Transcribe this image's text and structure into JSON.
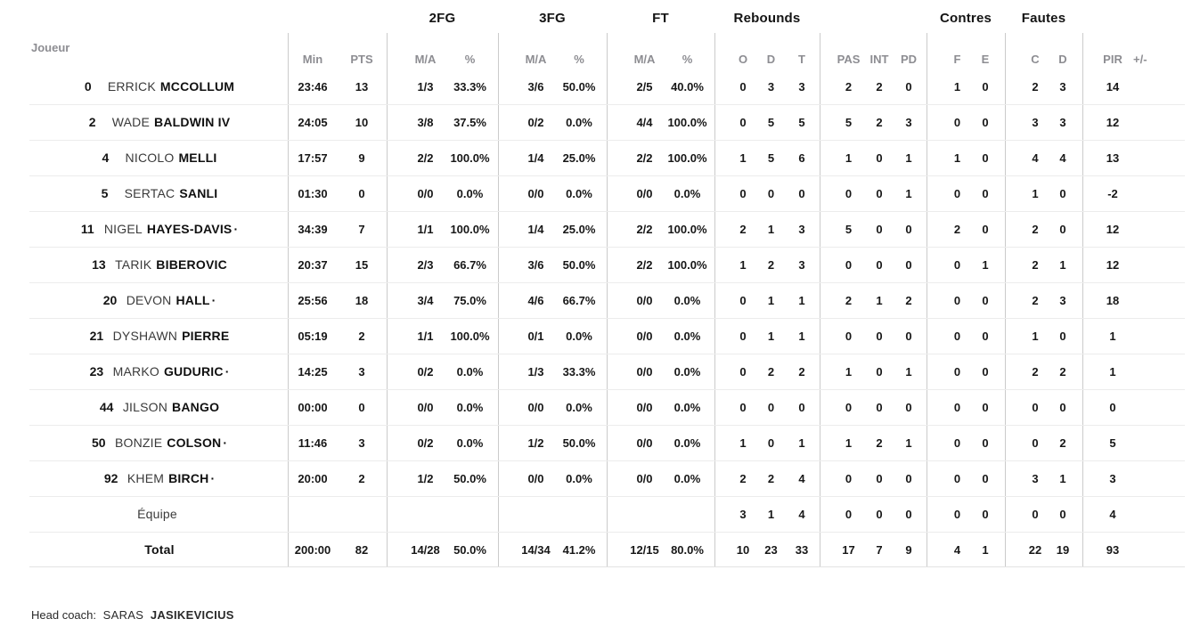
{
  "colors": {
    "text": "#171717",
    "muted": "#8d8d92",
    "vline": "#cbcbcb",
    "hline": "#ececec"
  },
  "table": {
    "joueur_header": "Joueur",
    "group_headers": {
      "fg2": "2FG",
      "fg3": "3FG",
      "ft": "FT",
      "rebounds": "Rebounds",
      "contres": "Contres",
      "fautes": "Fautes"
    },
    "col_headers": {
      "min": "Min",
      "pts": "PTS",
      "ma": "M/A",
      "pct": "%",
      "o": "O",
      "d": "D",
      "t": "T",
      "pas": "PAS",
      "int": "INT",
      "pd": "PD",
      "f": "F",
      "e": "E",
      "c": "C",
      "d2": "D",
      "pir": "PIR",
      "plusminus": "+/-"
    },
    "rows": [
      {
        "number": "0",
        "name_regular": "ERRICK",
        "name_bold": "MCCOLLUM",
        "marker": "",
        "min": "23:46",
        "pts": "13",
        "fg2_ma": "1/3",
        "fg2_pct": "33.3%",
        "fg3_ma": "3/6",
        "fg3_pct": "50.0%",
        "ft_ma": "2/5",
        "ft_pct": "40.0%",
        "reb_o": "0",
        "reb_d": "3",
        "reb_t": "3",
        "pas": "2",
        "int": "2",
        "pd": "0",
        "f": "1",
        "e": "0",
        "c": "2",
        "d": "3",
        "pir": "14",
        "pm": ""
      },
      {
        "number": "2",
        "name_regular": "WADE",
        "name_bold": "BALDWIN IV",
        "marker": "",
        "min": "24:05",
        "pts": "10",
        "fg2_ma": "3/8",
        "fg2_pct": "37.5%",
        "fg3_ma": "0/2",
        "fg3_pct": "0.0%",
        "ft_ma": "4/4",
        "ft_pct": "100.0%",
        "reb_o": "0",
        "reb_d": "5",
        "reb_t": "5",
        "pas": "5",
        "int": "2",
        "pd": "3",
        "f": "0",
        "e": "0",
        "c": "3",
        "d": "3",
        "pir": "12",
        "pm": ""
      },
      {
        "number": "4",
        "name_regular": "NICOLO",
        "name_bold": "MELLI",
        "marker": "",
        "min": "17:57",
        "pts": "9",
        "fg2_ma": "2/2",
        "fg2_pct": "100.0%",
        "fg3_ma": "1/4",
        "fg3_pct": "25.0%",
        "ft_ma": "2/2",
        "ft_pct": "100.0%",
        "reb_o": "1",
        "reb_d": "5",
        "reb_t": "6",
        "pas": "1",
        "int": "0",
        "pd": "1",
        "f": "1",
        "e": "0",
        "c": "4",
        "d": "4",
        "pir": "13",
        "pm": ""
      },
      {
        "number": "5",
        "name_regular": "SERTAC",
        "name_bold": "SANLI",
        "marker": "",
        "min": "01:30",
        "pts": "0",
        "fg2_ma": "0/0",
        "fg2_pct": "0.0%",
        "fg3_ma": "0/0",
        "fg3_pct": "0.0%",
        "ft_ma": "0/0",
        "ft_pct": "0.0%",
        "reb_o": "0",
        "reb_d": "0",
        "reb_t": "0",
        "pas": "0",
        "int": "0",
        "pd": "1",
        "f": "0",
        "e": "0",
        "c": "1",
        "d": "0",
        "pir": "-2",
        "pm": ""
      },
      {
        "number": "11",
        "name_regular": "NIGEL",
        "name_bold": "HAYES-DAVIS",
        "marker": "·",
        "min": "34:39",
        "pts": "7",
        "fg2_ma": "1/1",
        "fg2_pct": "100.0%",
        "fg3_ma": "1/4",
        "fg3_pct": "25.0%",
        "ft_ma": "2/2",
        "ft_pct": "100.0%",
        "reb_o": "2",
        "reb_d": "1",
        "reb_t": "3",
        "pas": "5",
        "int": "0",
        "pd": "0",
        "f": "2",
        "e": "0",
        "c": "2",
        "d": "0",
        "pir": "12",
        "pm": ""
      },
      {
        "number": "13",
        "name_regular": "TARIK",
        "name_bold": "BIBEROVIC",
        "marker": "",
        "min": "20:37",
        "pts": "15",
        "fg2_ma": "2/3",
        "fg2_pct": "66.7%",
        "fg3_ma": "3/6",
        "fg3_pct": "50.0%",
        "ft_ma": "2/2",
        "ft_pct": "100.0%",
        "reb_o": "1",
        "reb_d": "2",
        "reb_t": "3",
        "pas": "0",
        "int": "0",
        "pd": "0",
        "f": "0",
        "e": "1",
        "c": "2",
        "d": "1",
        "pir": "12",
        "pm": ""
      },
      {
        "number": "20",
        "name_regular": "DEVON",
        "name_bold": "HALL",
        "marker": "·",
        "min": "25:56",
        "pts": "18",
        "fg2_ma": "3/4",
        "fg2_pct": "75.0%",
        "fg3_ma": "4/6",
        "fg3_pct": "66.7%",
        "ft_ma": "0/0",
        "ft_pct": "0.0%",
        "reb_o": "0",
        "reb_d": "1",
        "reb_t": "1",
        "pas": "2",
        "int": "1",
        "pd": "2",
        "f": "0",
        "e": "0",
        "c": "2",
        "d": "3",
        "pir": "18",
        "pm": ""
      },
      {
        "number": "21",
        "name_regular": "DYSHAWN",
        "name_bold": "PIERRE",
        "marker": "",
        "min": "05:19",
        "pts": "2",
        "fg2_ma": "1/1",
        "fg2_pct": "100.0%",
        "fg3_ma": "0/1",
        "fg3_pct": "0.0%",
        "ft_ma": "0/0",
        "ft_pct": "0.0%",
        "reb_o": "0",
        "reb_d": "1",
        "reb_t": "1",
        "pas": "0",
        "int": "0",
        "pd": "0",
        "f": "0",
        "e": "0",
        "c": "1",
        "d": "0",
        "pir": "1",
        "pm": ""
      },
      {
        "number": "23",
        "name_regular": "MARKO",
        "name_bold": "GUDURIC",
        "marker": "·",
        "min": "14:25",
        "pts": "3",
        "fg2_ma": "0/2",
        "fg2_pct": "0.0%",
        "fg3_ma": "1/3",
        "fg3_pct": "33.3%",
        "ft_ma": "0/0",
        "ft_pct": "0.0%",
        "reb_o": "0",
        "reb_d": "2",
        "reb_t": "2",
        "pas": "1",
        "int": "0",
        "pd": "1",
        "f": "0",
        "e": "0",
        "c": "2",
        "d": "2",
        "pir": "1",
        "pm": ""
      },
      {
        "number": "44",
        "name_regular": "JILSON",
        "name_bold": "BANGO",
        "marker": "",
        "min": "00:00",
        "pts": "0",
        "fg2_ma": "0/0",
        "fg2_pct": "0.0%",
        "fg3_ma": "0/0",
        "fg3_pct": "0.0%",
        "ft_ma": "0/0",
        "ft_pct": "0.0%",
        "reb_o": "0",
        "reb_d": "0",
        "reb_t": "0",
        "pas": "0",
        "int": "0",
        "pd": "0",
        "f": "0",
        "e": "0",
        "c": "0",
        "d": "0",
        "pir": "0",
        "pm": ""
      },
      {
        "number": "50",
        "name_regular": "BONZIE",
        "name_bold": "COLSON",
        "marker": "·",
        "min": "11:46",
        "pts": "3",
        "fg2_ma": "0/2",
        "fg2_pct": "0.0%",
        "fg3_ma": "1/2",
        "fg3_pct": "50.0%",
        "ft_ma": "0/0",
        "ft_pct": "0.0%",
        "reb_o": "1",
        "reb_d": "0",
        "reb_t": "1",
        "pas": "1",
        "int": "2",
        "pd": "1",
        "f": "0",
        "e": "0",
        "c": "0",
        "d": "2",
        "pir": "5",
        "pm": ""
      },
      {
        "number": "92",
        "name_regular": "KHEM",
        "name_bold": "BIRCH",
        "marker": "·",
        "min": "20:00",
        "pts": "2",
        "fg2_ma": "1/2",
        "fg2_pct": "50.0%",
        "fg3_ma": "0/0",
        "fg3_pct": "0.0%",
        "ft_ma": "0/0",
        "ft_pct": "0.0%",
        "reb_o": "2",
        "reb_d": "2",
        "reb_t": "4",
        "pas": "0",
        "int": "0",
        "pd": "0",
        "f": "0",
        "e": "0",
        "c": "3",
        "d": "1",
        "pir": "3",
        "pm": ""
      },
      {
        "number": "",
        "name_regular": "Équipe",
        "name_bold": "",
        "marker": "",
        "min": "",
        "pts": "",
        "fg2_ma": "",
        "fg2_pct": "",
        "fg3_ma": "",
        "fg3_pct": "",
        "ft_ma": "",
        "ft_pct": "",
        "reb_o": "3",
        "reb_d": "1",
        "reb_t": "4",
        "pas": "0",
        "int": "0",
        "pd": "0",
        "f": "0",
        "e": "0",
        "c": "0",
        "d": "0",
        "pir": "4",
        "pm": ""
      },
      {
        "number": "",
        "name_regular": "",
        "name_bold": "Total",
        "marker": "",
        "min": "200:00",
        "pts": "82",
        "fg2_ma": "14/28",
        "fg2_pct": "50.0%",
        "fg3_ma": "14/34",
        "fg3_pct": "41.2%",
        "ft_ma": "12/15",
        "ft_pct": "80.0%",
        "reb_o": "10",
        "reb_d": "23",
        "reb_t": "33",
        "pas": "17",
        "int": "7",
        "pd": "9",
        "f": "4",
        "e": "1",
        "c": "22",
        "d": "19",
        "pir": "93",
        "pm": ""
      }
    ]
  },
  "footer": {
    "label": "Head coach:",
    "coach_first": "SARAS",
    "coach_last": "JASIKEVICIUS"
  }
}
